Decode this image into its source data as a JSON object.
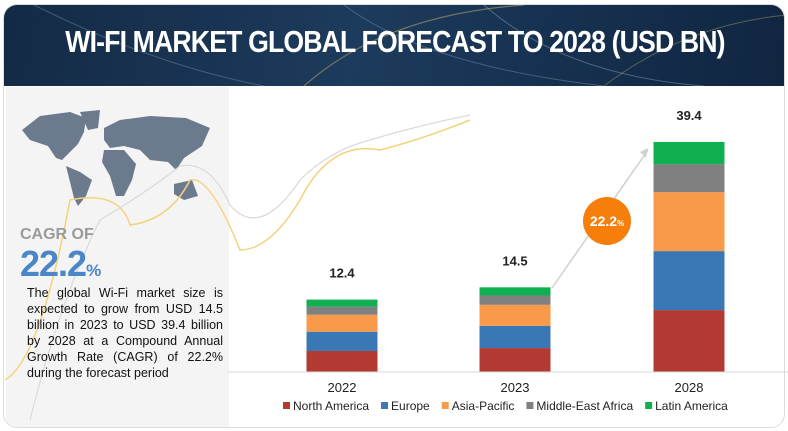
{
  "header": {
    "title": "WI-FI MARKET GLOBAL FORECAST TO 2028 (USD BN)"
  },
  "left_panel": {
    "cagr_label": "CAGR OF",
    "cagr_value": "22.2",
    "cagr_unit": "%",
    "description": "The global Wi-Fi market size is expected to grow from USD 14.5 billion in 2023 to USD 39.4 billion by 2028 at a Compound Annual Growth Rate (CAGR) of 22.2% during the forecast period",
    "map_icon": "world-map"
  },
  "chart_data": {
    "type": "bar",
    "stacked": true,
    "categories": [
      "2022",
      "2023",
      "2028"
    ],
    "totals": [
      "12.4",
      "14.5",
      "39.4"
    ],
    "series": [
      {
        "name": "North America",
        "color": "#b33a32",
        "values": [
          3.6,
          4.1,
          10.6
        ]
      },
      {
        "name": "Europe",
        "color": "#3a78b5",
        "values": [
          3.3,
          3.8,
          10.1
        ]
      },
      {
        "name": "Asia-Pacific",
        "color": "#f89a4a",
        "values": [
          2.9,
          3.6,
          10.1
        ]
      },
      {
        "name": "Middle-East Africa",
        "color": "#808080",
        "values": [
          1.4,
          1.6,
          4.8
        ]
      },
      {
        "name": "Latin America",
        "color": "#10b050",
        "values": [
          1.2,
          1.4,
          3.8
        ]
      }
    ],
    "annotation": {
      "text": "22.2",
      "unit": "%",
      "color": "#f57f0a"
    },
    "legend_position": "bottom",
    "grid": false
  }
}
